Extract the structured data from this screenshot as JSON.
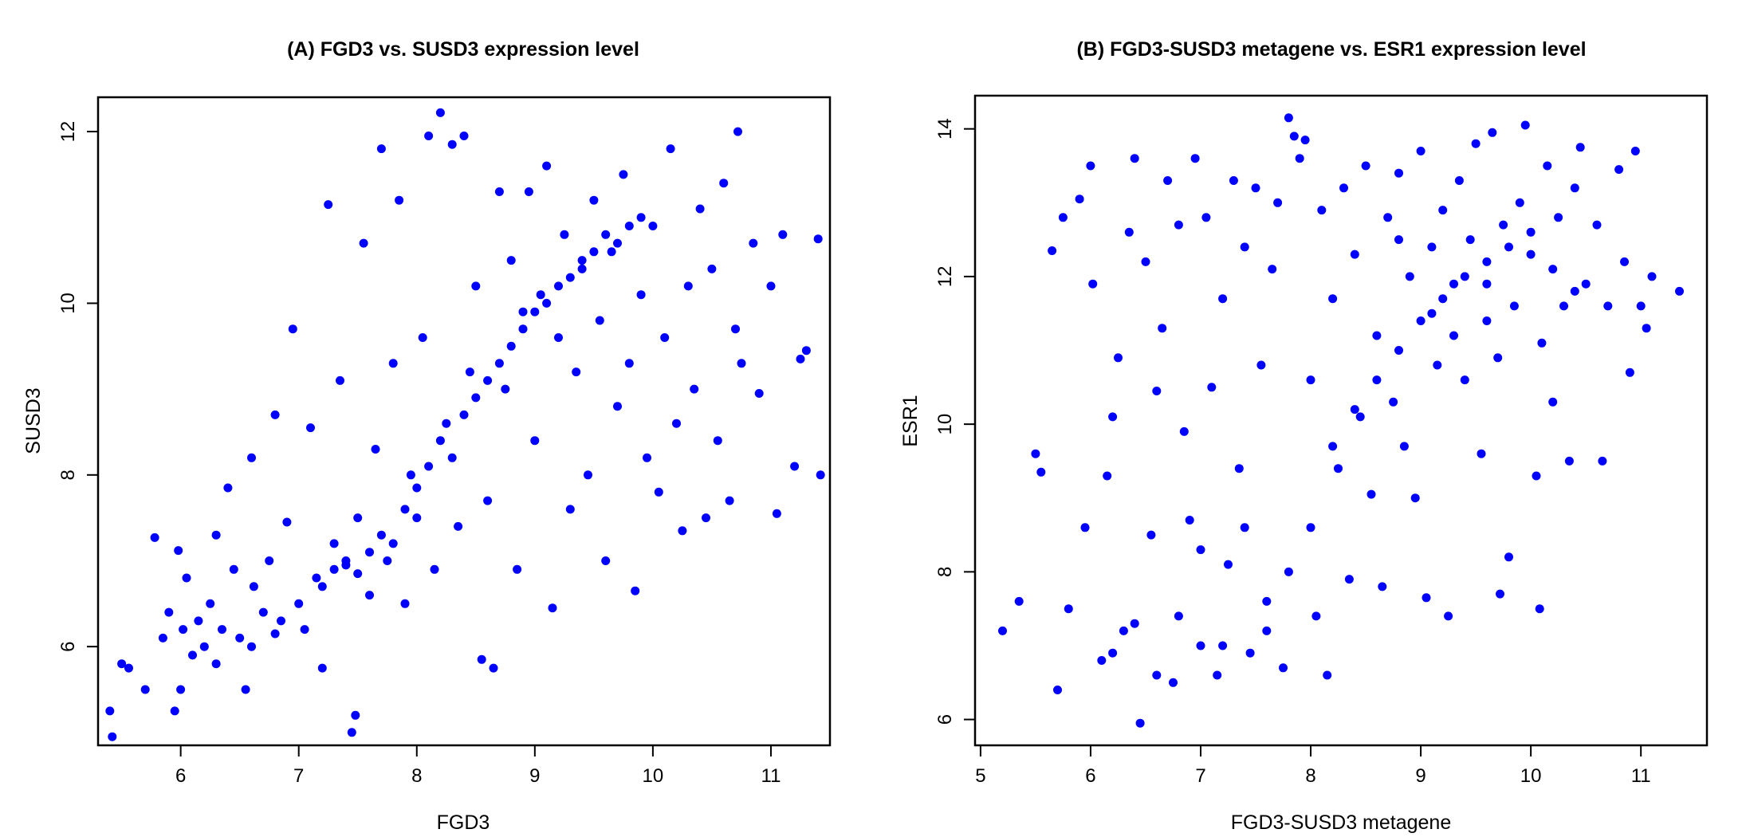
{
  "chart_data": [
    {
      "type": "scatter",
      "title": "(A) FGD3 vs. SUSD3 expression level",
      "xlabel": "FGD3",
      "ylabel": "SUSD3",
      "xlim": [
        5.3,
        11.5
      ],
      "ylim": [
        4.85,
        12.4
      ],
      "x_ticks": [
        6,
        7,
        8,
        9,
        10,
        11
      ],
      "y_ticks": [
        6,
        8,
        10,
        12
      ],
      "grid": false,
      "legend": "none",
      "marker_color": "#0000ff",
      "points": [
        [
          5.4,
          5.25
        ],
        [
          5.42,
          4.95
        ],
        [
          5.5,
          5.8
        ],
        [
          5.56,
          5.75
        ],
        [
          5.7,
          5.5
        ],
        [
          5.78,
          7.27
        ],
        [
          5.85,
          6.1
        ],
        [
          5.9,
          6.4
        ],
        [
          5.95,
          5.25
        ],
        [
          5.98,
          7.12
        ],
        [
          6.02,
          6.2
        ],
        [
          6.05,
          6.8
        ],
        [
          6.1,
          5.9
        ],
        [
          6.15,
          6.3
        ],
        [
          6.2,
          6.0
        ],
        [
          6.25,
          6.5
        ],
        [
          6.3,
          7.3
        ],
        [
          6.35,
          6.2
        ],
        [
          6.4,
          7.85
        ],
        [
          6.45,
          6.9
        ],
        [
          6.5,
          6.1
        ],
        [
          6.55,
          5.5
        ],
        [
          6.6,
          8.2
        ],
        [
          6.62,
          6.7
        ],
        [
          6.7,
          6.4
        ],
        [
          6.75,
          7.0
        ],
        [
          6.8,
          8.7
        ],
        [
          6.85,
          6.3
        ],
        [
          6.9,
          7.45
        ],
        [
          6.95,
          9.7
        ],
        [
          7.05,
          6.2
        ],
        [
          7.1,
          8.55
        ],
        [
          7.15,
          6.8
        ],
        [
          7.2,
          5.75
        ],
        [
          7.25,
          11.15
        ],
        [
          7.3,
          7.2
        ],
        [
          7.35,
          9.1
        ],
        [
          7.4,
          6.95
        ],
        [
          7.45,
          5.0
        ],
        [
          7.48,
          5.2
        ],
        [
          7.5,
          7.5
        ],
        [
          7.55,
          10.7
        ],
        [
          7.6,
          6.6
        ],
        [
          7.65,
          8.3
        ],
        [
          7.7,
          11.8
        ],
        [
          7.75,
          7.0
        ],
        [
          7.8,
          9.3
        ],
        [
          7.85,
          11.2
        ],
        [
          7.9,
          6.5
        ],
        [
          7.95,
          8.0
        ],
        [
          8.0,
          7.5
        ],
        [
          8.05,
          9.6
        ],
        [
          8.1,
          11.95
        ],
        [
          8.15,
          6.9
        ],
        [
          8.2,
          12.22
        ],
        [
          8.25,
          8.6
        ],
        [
          8.3,
          11.85
        ],
        [
          8.35,
          7.4
        ],
        [
          8.4,
          11.95
        ],
        [
          8.45,
          9.2
        ],
        [
          8.5,
          10.2
        ],
        [
          8.55,
          5.85
        ],
        [
          8.6,
          7.7
        ],
        [
          8.65,
          5.75
        ],
        [
          8.7,
          11.3
        ],
        [
          8.75,
          9.0
        ],
        [
          8.8,
          10.5
        ],
        [
          8.85,
          6.9
        ],
        [
          8.9,
          9.9
        ],
        [
          8.95,
          11.3
        ],
        [
          9.0,
          8.4
        ],
        [
          9.05,
          10.1
        ],
        [
          9.1,
          11.6
        ],
        [
          9.15,
          6.45
        ],
        [
          9.2,
          9.6
        ],
        [
          9.25,
          10.8
        ],
        [
          9.3,
          7.6
        ],
        [
          9.35,
          9.2
        ],
        [
          9.4,
          10.4
        ],
        [
          9.45,
          8.0
        ],
        [
          9.5,
          11.2
        ],
        [
          9.55,
          9.8
        ],
        [
          9.6,
          7.0
        ],
        [
          9.65,
          10.6
        ],
        [
          9.7,
          8.8
        ],
        [
          9.75,
          11.5
        ],
        [
          9.8,
          9.3
        ],
        [
          9.85,
          6.65
        ],
        [
          9.9,
          10.1
        ],
        [
          9.95,
          8.2
        ],
        [
          10.0,
          10.9
        ],
        [
          10.05,
          7.8
        ],
        [
          10.1,
          9.6
        ],
        [
          10.15,
          11.8
        ],
        [
          10.2,
          8.6
        ],
        [
          10.25,
          7.35
        ],
        [
          10.3,
          10.2
        ],
        [
          10.35,
          9.0
        ],
        [
          10.4,
          11.1
        ],
        [
          10.45,
          7.5
        ],
        [
          10.5,
          10.4
        ],
        [
          10.55,
          8.4
        ],
        [
          10.6,
          11.4
        ],
        [
          10.65,
          7.7
        ],
        [
          10.7,
          9.7
        ],
        [
          10.72,
          12.0
        ],
        [
          10.75,
          9.3
        ],
        [
          10.85,
          10.7
        ],
        [
          10.9,
          8.95
        ],
        [
          11.0,
          10.2
        ],
        [
          11.05,
          7.55
        ],
        [
          11.1,
          10.8
        ],
        [
          11.2,
          8.1
        ],
        [
          11.25,
          9.35
        ],
        [
          11.3,
          9.45
        ],
        [
          11.4,
          10.75
        ],
        [
          11.42,
          8.0
        ],
        [
          6.0,
          5.5
        ],
        [
          6.3,
          5.8
        ],
        [
          6.6,
          6.0
        ],
        [
          6.8,
          6.15
        ],
        [
          7.0,
          6.5
        ],
        [
          7.2,
          6.7
        ],
        [
          7.3,
          6.9
        ],
        [
          7.4,
          7.0
        ],
        [
          7.5,
          6.85
        ],
        [
          7.6,
          7.1
        ],
        [
          7.7,
          7.3
        ],
        [
          7.8,
          7.2
        ],
        [
          7.9,
          7.6
        ],
        [
          8.0,
          7.85
        ],
        [
          8.1,
          8.1
        ],
        [
          8.2,
          8.4
        ],
        [
          8.3,
          8.2
        ],
        [
          8.4,
          8.7
        ],
        [
          8.5,
          8.9
        ],
        [
          8.6,
          9.1
        ],
        [
          8.7,
          9.3
        ],
        [
          8.8,
          9.5
        ],
        [
          8.9,
          9.7
        ],
        [
          9.0,
          9.9
        ],
        [
          9.1,
          10.0
        ],
        [
          9.2,
          10.2
        ],
        [
          9.3,
          10.3
        ],
        [
          9.4,
          10.5
        ],
        [
          9.5,
          10.6
        ],
        [
          9.6,
          10.8
        ],
        [
          9.7,
          10.7
        ],
        [
          9.8,
          10.9
        ],
        [
          9.9,
          11.0
        ]
      ]
    },
    {
      "type": "scatter",
      "title": "(B) FGD3-SUSD3 metagene vs. ESR1 expression level",
      "xlabel": "FGD3-SUSD3 metagene",
      "ylabel": "ESR1",
      "xlim": [
        4.95,
        11.6
      ],
      "ylim": [
        5.65,
        14.45
      ],
      "x_ticks": [
        5,
        6,
        7,
        8,
        9,
        10,
        11
      ],
      "y_ticks": [
        6,
        8,
        10,
        12,
        14
      ],
      "grid": false,
      "legend": "none",
      "marker_color": "#0000ff",
      "points": [
        [
          5.2,
          7.2
        ],
        [
          5.35,
          7.6
        ],
        [
          5.5,
          9.6
        ],
        [
          5.55,
          9.35
        ],
        [
          5.65,
          12.35
        ],
        [
          5.7,
          6.4
        ],
        [
          5.75,
          12.8
        ],
        [
          5.8,
          7.5
        ],
        [
          5.9,
          13.05
        ],
        [
          5.95,
          8.6
        ],
        [
          6.0,
          13.5
        ],
        [
          6.02,
          11.9
        ],
        [
          6.1,
          6.8
        ],
        [
          6.15,
          9.3
        ],
        [
          6.2,
          10.1
        ],
        [
          6.25,
          10.9
        ],
        [
          6.3,
          7.2
        ],
        [
          6.35,
          12.6
        ],
        [
          6.4,
          13.6
        ],
        [
          6.45,
          5.95
        ],
        [
          6.5,
          12.2
        ],
        [
          6.55,
          8.5
        ],
        [
          6.6,
          10.45
        ],
        [
          6.65,
          11.3
        ],
        [
          6.7,
          13.3
        ],
        [
          6.75,
          6.5
        ],
        [
          6.8,
          12.7
        ],
        [
          6.85,
          9.9
        ],
        [
          6.9,
          8.7
        ],
        [
          6.95,
          13.6
        ],
        [
          7.0,
          7.0
        ],
        [
          7.05,
          12.8
        ],
        [
          7.1,
          10.5
        ],
        [
          7.15,
          6.6
        ],
        [
          7.2,
          11.7
        ],
        [
          7.25,
          8.1
        ],
        [
          7.3,
          13.3
        ],
        [
          7.35,
          9.4
        ],
        [
          7.4,
          12.4
        ],
        [
          7.45,
          6.9
        ],
        [
          7.5,
          13.2
        ],
        [
          7.55,
          10.8
        ],
        [
          7.6,
          7.6
        ],
        [
          7.65,
          12.1
        ],
        [
          7.7,
          13.0
        ],
        [
          7.75,
          6.7
        ],
        [
          7.8,
          14.15
        ],
        [
          7.85,
          13.9
        ],
        [
          7.9,
          13.6
        ],
        [
          7.95,
          13.85
        ],
        [
          8.0,
          10.6
        ],
        [
          8.05,
          7.4
        ],
        [
          8.1,
          12.9
        ],
        [
          8.15,
          6.6
        ],
        [
          8.2,
          11.7
        ],
        [
          8.25,
          9.4
        ],
        [
          8.3,
          13.2
        ],
        [
          8.35,
          7.9
        ],
        [
          8.4,
          12.3
        ],
        [
          8.45,
          10.1
        ],
        [
          8.5,
          13.5
        ],
        [
          8.55,
          9.05
        ],
        [
          8.6,
          11.2
        ],
        [
          8.65,
          7.8
        ],
        [
          8.7,
          12.8
        ],
        [
          8.75,
          10.3
        ],
        [
          8.8,
          13.4
        ],
        [
          8.85,
          9.7
        ],
        [
          8.9,
          12.0
        ],
        [
          8.95,
          9.0
        ],
        [
          9.0,
          13.7
        ],
        [
          9.05,
          7.65
        ],
        [
          9.1,
          11.5
        ],
        [
          9.15,
          10.8
        ],
        [
          9.2,
          12.9
        ],
        [
          9.25,
          7.4
        ],
        [
          9.3,
          11.2
        ],
        [
          9.35,
          13.3
        ],
        [
          9.4,
          10.6
        ],
        [
          9.45,
          12.5
        ],
        [
          9.5,
          13.8
        ],
        [
          9.55,
          9.6
        ],
        [
          9.6,
          11.9
        ],
        [
          9.65,
          13.95
        ],
        [
          9.7,
          10.9
        ],
        [
          9.72,
          7.7
        ],
        [
          9.75,
          12.7
        ],
        [
          9.8,
          8.2
        ],
        [
          9.85,
          11.6
        ],
        [
          9.9,
          13.0
        ],
        [
          9.95,
          14.05
        ],
        [
          10.0,
          12.3
        ],
        [
          10.05,
          9.3
        ],
        [
          10.08,
          7.5
        ],
        [
          10.1,
          11.1
        ],
        [
          10.15,
          13.5
        ],
        [
          10.2,
          10.3
        ],
        [
          10.25,
          12.8
        ],
        [
          10.3,
          11.6
        ],
        [
          10.35,
          9.5
        ],
        [
          10.4,
          13.2
        ],
        [
          10.45,
          13.75
        ],
        [
          10.5,
          11.9
        ],
        [
          10.6,
          12.7
        ],
        [
          10.65,
          9.5
        ],
        [
          10.7,
          11.6
        ],
        [
          10.8,
          13.45
        ],
        [
          10.85,
          12.2
        ],
        [
          10.9,
          10.7
        ],
        [
          10.95,
          13.7
        ],
        [
          11.0,
          11.6
        ],
        [
          11.05,
          11.3
        ],
        [
          11.1,
          12.0
        ],
        [
          11.35,
          11.8
        ],
        [
          6.2,
          6.9
        ],
        [
          6.4,
          7.3
        ],
        [
          6.6,
          6.6
        ],
        [
          6.8,
          7.4
        ],
        [
          7.0,
          8.3
        ],
        [
          7.2,
          7.0
        ],
        [
          7.4,
          8.6
        ],
        [
          7.6,
          7.2
        ],
        [
          7.8,
          8.0
        ],
        [
          8.0,
          8.6
        ],
        [
          8.2,
          9.7
        ],
        [
          8.4,
          10.2
        ],
        [
          8.6,
          10.6
        ],
        [
          8.8,
          11.0
        ],
        [
          9.0,
          11.4
        ],
        [
          9.2,
          11.7
        ],
        [
          9.4,
          12.0
        ],
        [
          9.6,
          12.2
        ],
        [
          9.8,
          12.4
        ],
        [
          10.0,
          12.6
        ],
        [
          10.2,
          12.1
        ],
        [
          10.4,
          11.8
        ],
        [
          8.8,
          12.5
        ],
        [
          9.1,
          12.4
        ],
        [
          9.3,
          11.9
        ],
        [
          9.6,
          11.4
        ]
      ]
    }
  ]
}
